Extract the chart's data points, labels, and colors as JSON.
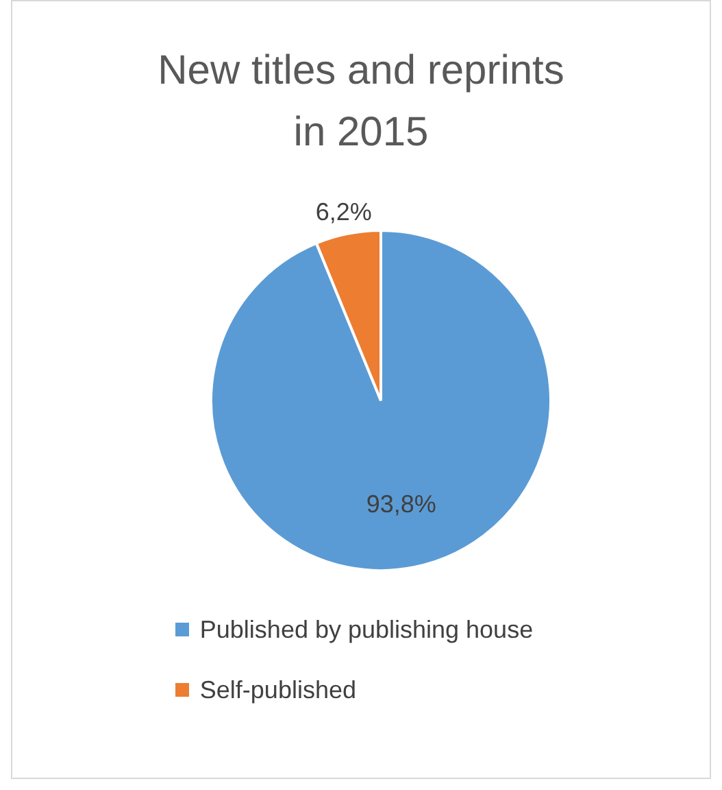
{
  "chart_data": {
    "type": "pie",
    "title": "New titles and reprints in 2015",
    "categories": [
      "Published by publishing house",
      "Self-published"
    ],
    "values": [
      93.8,
      6.2
    ],
    "colors": [
      "#5b9bd5",
      "#ed7d31"
    ],
    "value_labels": [
      "93,8%",
      "6,2%"
    ],
    "legend": "bottom"
  }
}
